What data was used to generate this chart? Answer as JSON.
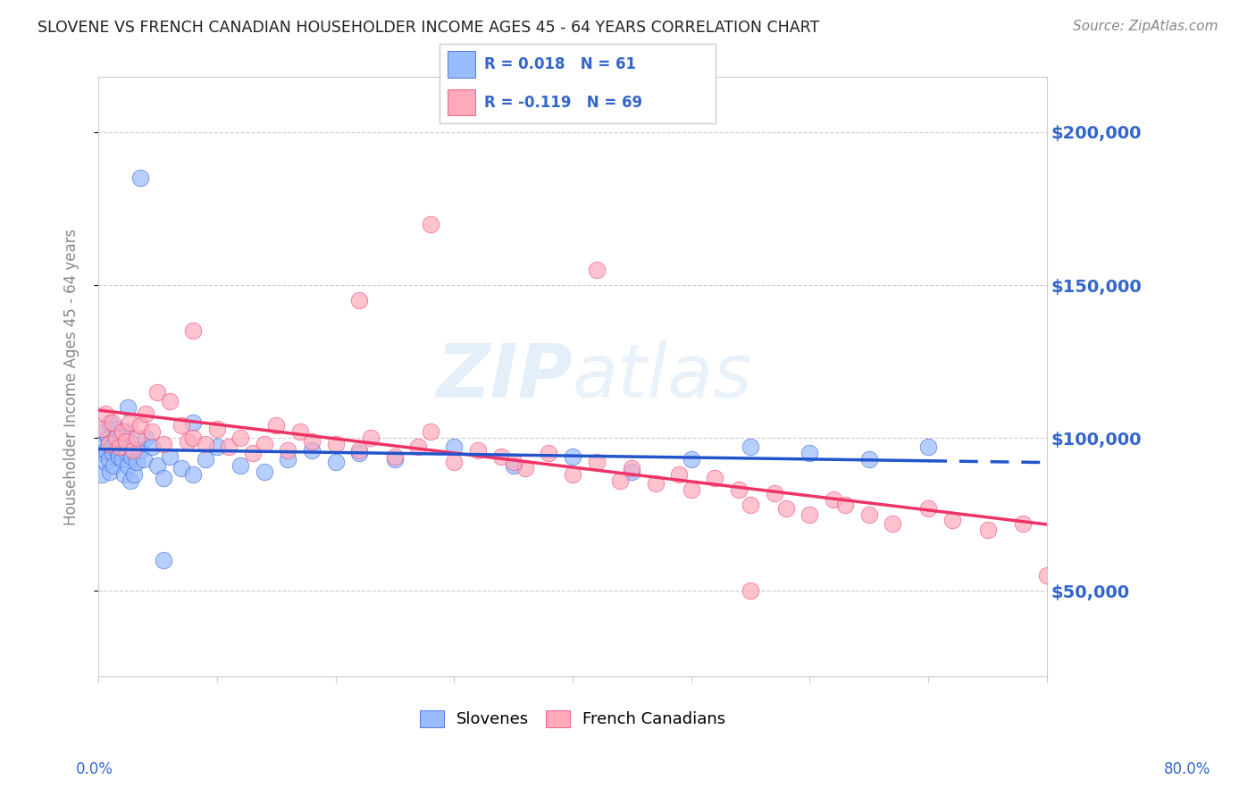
{
  "title": "SLOVENE VS FRENCH CANADIAN HOUSEHOLDER INCOME AGES 45 - 64 YEARS CORRELATION CHART",
  "source": "Source: ZipAtlas.com",
  "ylabel": "Householder Income Ages 45 - 64 years",
  "xlim": [
    0.0,
    80.0
  ],
  "ylim": [
    22000,
    218000
  ],
  "yticks": [
    50000,
    100000,
    150000,
    200000
  ],
  "ytick_labels": [
    "$50,000",
    "$100,000",
    "$150,000",
    "$200,000"
  ],
  "watermark": "ZIPAtlas",
  "slovene_color": "#99bbff",
  "french_color": "#ffaabb",
  "slovene_line_color": "#2255cc",
  "french_line_color": "#ee3366",
  "legend_label1": "Slovenes",
  "legend_label2": "French Canadians",
  "R1": 0.018,
  "N1": 61,
  "R2": -0.119,
  "N2": 69,
  "background_color": "#ffffff",
  "grid_color": "#cccccc",
  "axis_color": "#aaaaaa",
  "title_color": "#222222",
  "source_color": "#888888",
  "ylabel_color": "#888888",
  "tick_label_color": "#3366cc"
}
